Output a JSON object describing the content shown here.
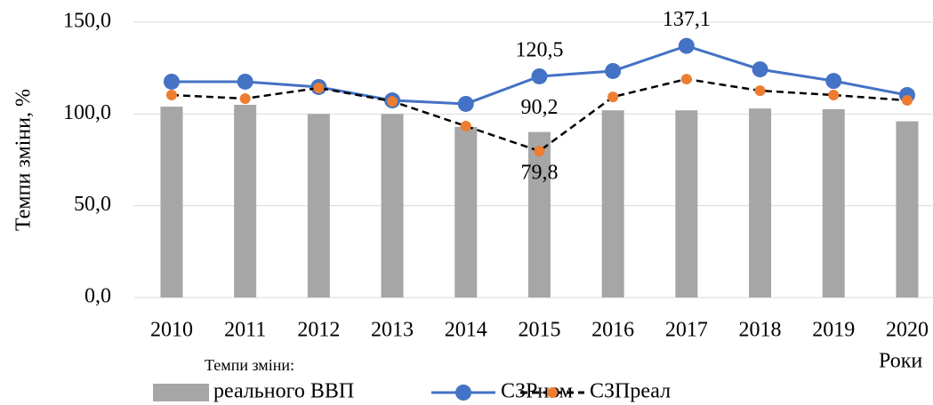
{
  "chart_data": {
    "type": "bar_line",
    "y_label": "Темпи зміни, %",
    "x_label": "Роки",
    "legend_title": "Темпи зміни:",
    "categories": [
      "2010",
      "2011",
      "2012",
      "2013",
      "2014",
      "2015",
      "2016",
      "2017",
      "2018",
      "2019",
      "2020"
    ],
    "series": [
      {
        "name": "реального ВВП",
        "type": "bar",
        "color": "#a6a6a6",
        "values": [
          104.0,
          105.0,
          100.0,
          100.0,
          93.0,
          90.2,
          102.0,
          102.0,
          103.0,
          102.6,
          96.0
        ],
        "value_labels": [
          null,
          null,
          null,
          null,
          null,
          "90,2",
          null,
          null,
          null,
          null,
          null
        ]
      },
      {
        "name": "СЗРном",
        "type": "line",
        "color": "#4472c4",
        "marker_color": "#4472c4",
        "values": [
          117.6,
          117.6,
          114.7,
          107.4,
          105.5,
          120.5,
          123.4,
          137.1,
          124.3,
          118.0,
          110.3
        ],
        "value_labels": [
          null,
          null,
          null,
          null,
          null,
          "120,5",
          null,
          "137,1",
          null,
          null,
          null
        ]
      },
      {
        "name": "СЗПреал",
        "type": "line",
        "dashed": true,
        "color": "#000000",
        "marker_color": "#ed7d31",
        "values": [
          110.3,
          108.4,
          114.2,
          106.9,
          93.4,
          79.8,
          109.3,
          119.0,
          112.7,
          110.3,
          107.4
        ],
        "value_labels": [
          null,
          null,
          null,
          null,
          null,
          "79,8",
          null,
          null,
          null,
          null,
          null
        ]
      }
    ],
    "ylim": [
      0,
      150
    ],
    "yticks": [
      {
        "value": 0,
        "label": "0,0"
      },
      {
        "value": 50,
        "label": "50,0"
      },
      {
        "value": 100,
        "label": "100,0"
      },
      {
        "value": 150,
        "label": "150,0"
      }
    ],
    "grid": true,
    "legend": "bottom"
  }
}
